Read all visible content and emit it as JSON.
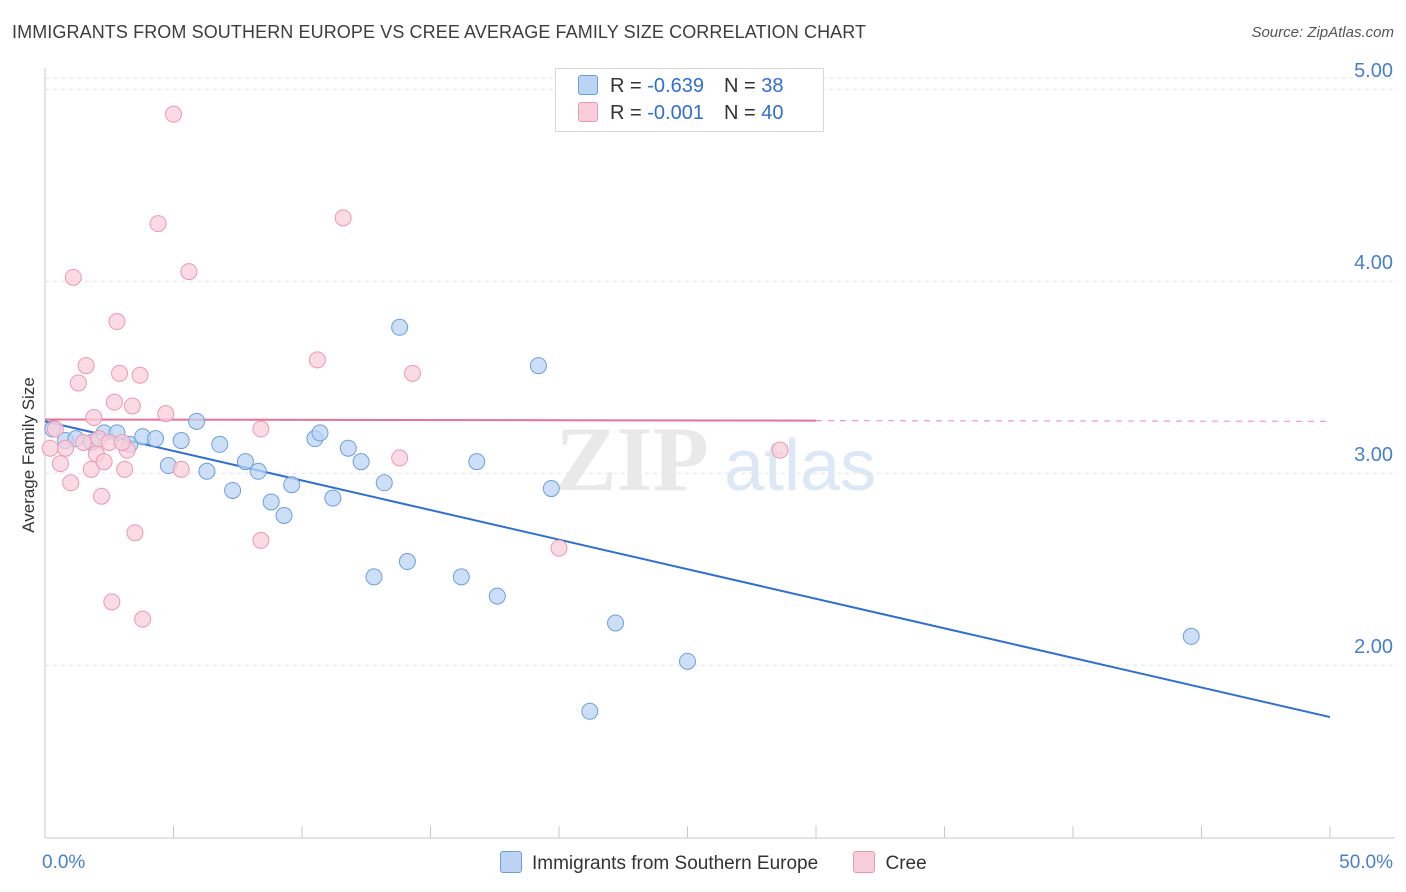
{
  "chart_data": {
    "type": "scatter",
    "title": "IMMIGRANTS FROM SOUTHERN EUROPE VS CREE AVERAGE FAMILY SIZE CORRELATION CHART",
    "source": "Source: ZipAtlas.com",
    "xlabel": "",
    "ylabel": "Average Family Size",
    "xlim": [
      0,
      50
    ],
    "ylim": [
      1.1,
      5.1
    ],
    "x_tick_labels": [
      "0.0%",
      "50.0%"
    ],
    "y_ticks": [
      2.0,
      3.0,
      4.0,
      5.0
    ],
    "y_tick_labels": [
      "2.00",
      "3.00",
      "4.00",
      "5.00"
    ],
    "watermark": "ZIPatlas",
    "legend": {
      "series1": {
        "r_label": "R = ",
        "r_value": "-0.639",
        "n_label": "N = ",
        "n_value": "38"
      },
      "series2": {
        "r_label": "R = ",
        "r_value": "-0.001",
        "n_label": "N = ",
        "n_value": "40"
      }
    },
    "series": [
      {
        "name": "Immigrants from Southern Europe",
        "color": "#6b9fde",
        "fill": "#bcd4f3",
        "trend": {
          "x0": 0,
          "y0": 3.27,
          "x1": 50,
          "y1": 1.73,
          "dash_from": null
        },
        "points": [
          [
            0.3,
            3.23
          ],
          [
            0.8,
            3.17
          ],
          [
            1.2,
            3.18
          ],
          [
            1.8,
            3.16
          ],
          [
            2.3,
            3.21
          ],
          [
            2.8,
            3.21
          ],
          [
            3.3,
            3.15
          ],
          [
            3.8,
            3.19
          ],
          [
            4.3,
            3.18
          ],
          [
            4.8,
            3.04
          ],
          [
            5.3,
            3.17
          ],
          [
            5.9,
            3.27
          ],
          [
            6.3,
            3.01
          ],
          [
            6.8,
            3.15
          ],
          [
            7.3,
            2.91
          ],
          [
            7.8,
            3.06
          ],
          [
            8.3,
            3.01
          ],
          [
            8.8,
            2.85
          ],
          [
            9.3,
            2.78
          ],
          [
            9.6,
            2.94
          ],
          [
            10.5,
            3.18
          ],
          [
            10.7,
            3.21
          ],
          [
            11.2,
            2.87
          ],
          [
            11.8,
            3.13
          ],
          [
            12.3,
            3.06
          ],
          [
            12.8,
            2.46
          ],
          [
            13.2,
            2.95
          ],
          [
            13.8,
            3.76
          ],
          [
            14.1,
            2.54
          ],
          [
            16.2,
            2.46
          ],
          [
            16.8,
            3.06
          ],
          [
            17.6,
            2.36
          ],
          [
            19.2,
            3.56
          ],
          [
            19.7,
            2.92
          ],
          [
            21.2,
            1.76
          ],
          [
            22.2,
            2.22
          ],
          [
            25.0,
            2.02
          ],
          [
            44.6,
            2.15
          ]
        ]
      },
      {
        "name": "Cree",
        "color": "#ef97b2",
        "fill": "#f8cdda",
        "trend": {
          "x0": 0,
          "y0": 3.28,
          "x1": 50,
          "y1": 3.27,
          "dash_from": 30
        },
        "points": [
          [
            0.2,
            3.13
          ],
          [
            0.4,
            3.23
          ],
          [
            0.6,
            3.05
          ],
          [
            0.8,
            3.13
          ],
          [
            1.0,
            2.95
          ],
          [
            1.1,
            4.02
          ],
          [
            1.3,
            3.47
          ],
          [
            1.5,
            3.16
          ],
          [
            1.6,
            3.56
          ],
          [
            1.8,
            3.02
          ],
          [
            1.9,
            3.29
          ],
          [
            2.0,
            3.1
          ],
          [
            2.1,
            3.18
          ],
          [
            2.2,
            2.88
          ],
          [
            2.3,
            3.06
          ],
          [
            2.5,
            3.16
          ],
          [
            2.6,
            2.33
          ],
          [
            2.7,
            3.37
          ],
          [
            2.8,
            3.79
          ],
          [
            2.9,
            3.52
          ],
          [
            3.1,
            3.02
          ],
          [
            3.2,
            3.12
          ],
          [
            3.4,
            3.35
          ],
          [
            3.5,
            2.69
          ],
          [
            3.7,
            3.51
          ],
          [
            3.8,
            2.24
          ],
          [
            4.4,
            4.3
          ],
          [
            4.7,
            3.31
          ],
          [
            5.0,
            4.87
          ],
          [
            5.3,
            3.02
          ],
          [
            5.6,
            4.05
          ],
          [
            8.4,
            3.23
          ],
          [
            8.4,
            2.65
          ],
          [
            10.6,
            3.59
          ],
          [
            11.6,
            4.33
          ],
          [
            13.8,
            3.08
          ],
          [
            14.3,
            3.52
          ],
          [
            20.0,
            2.61
          ],
          [
            28.6,
            3.12
          ],
          [
            3.0,
            3.16
          ]
        ]
      }
    ]
  }
}
